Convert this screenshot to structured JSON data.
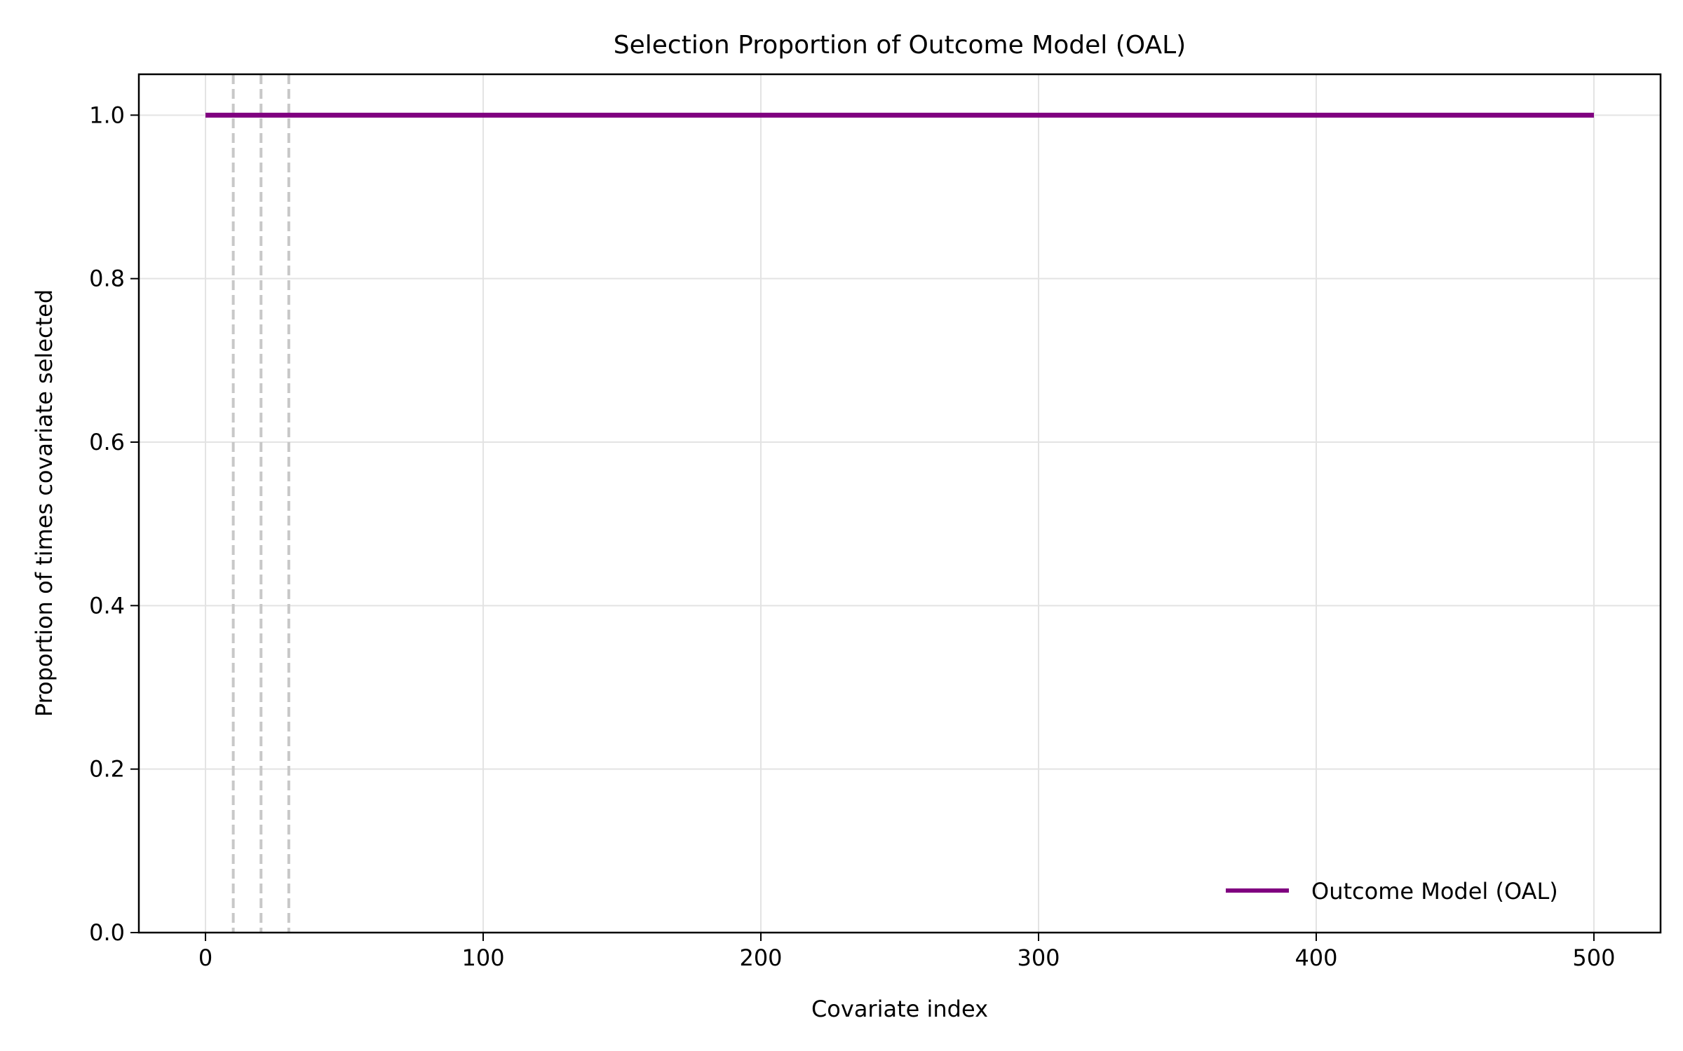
{
  "chart_data": {
    "type": "line",
    "title": "Selection Proportion of Outcome Model (OAL)",
    "xlabel": "Covariate index",
    "ylabel": "Proportion of times covariate selected",
    "xlim": [
      -24,
      524
    ],
    "ylim": [
      0.0,
      1.05
    ],
    "x_ticks": [
      0,
      100,
      200,
      300,
      400,
      500
    ],
    "x_tick_labels": [
      "0",
      "100",
      "200",
      "300",
      "400",
      "500"
    ],
    "y_ticks": [
      0.0,
      0.2,
      0.4,
      0.6,
      0.8,
      1.0
    ],
    "y_tick_labels": [
      "0.0",
      "0.2",
      "0.4",
      "0.6",
      "0.8",
      "1.0"
    ],
    "grid": true,
    "legend_position": "lower-right",
    "reference_lines": {
      "x": [
        10,
        20,
        30
      ],
      "style": "dashed",
      "color": "#c8c8c8"
    },
    "series": [
      {
        "name": "Outcome Model (OAL)",
        "color": "#800080",
        "x": [
          0,
          500
        ],
        "y": [
          1.0,
          1.0
        ]
      }
    ]
  }
}
